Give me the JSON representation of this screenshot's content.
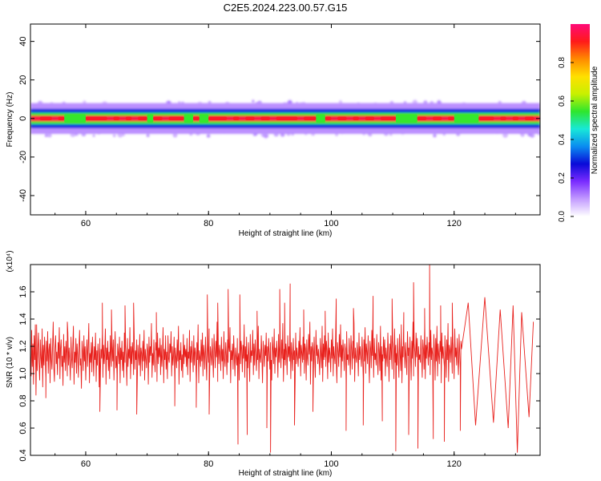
{
  "title": "C2E5.2024.223.00.57.G15",
  "colors": {
    "snr_line": "#e8201c",
    "colormap": [
      "#ffffff",
      "#c39bff",
      "#7a2cff",
      "#0a0ad8",
      "#0a8cf0",
      "#18e8d8",
      "#2ee62e",
      "#c8f000",
      "#ffe000",
      "#ff8a00",
      "#ff1a1a",
      "#ff0a78"
    ]
  },
  "colorbar": {
    "label": "Normalized spectral amplitude",
    "ticks": [
      "0.0",
      "0.2",
      "0.4",
      "0.6",
      "0.8"
    ]
  },
  "chart_data": [
    {
      "type": "heatmap",
      "xlabel": "Height of straight line (km)",
      "ylabel": "Frequency (Hz)",
      "xlim": [
        51,
        134
      ],
      "ylim": [
        -50,
        49
      ],
      "xticks": [
        "60",
        "80",
        "100",
        "120"
      ],
      "yticks": [
        "40",
        "20",
        "0",
        "-20",
        "-40"
      ],
      "colorbar_range": [
        0.0,
        1.0
      ],
      "band_center_hz": 0,
      "band_halfwidth_hz": [
        1.5,
        3,
        5,
        8
      ],
      "band_levels": [
        0.95,
        0.55,
        0.3,
        0.1
      ],
      "red_segments_km": [
        [
          52.5,
          54.5
        ],
        [
          55.5,
          56.5
        ],
        [
          60,
          63.5
        ],
        [
          64.5,
          65.5
        ],
        [
          66.5,
          67.5
        ],
        [
          68.5,
          70
        ],
        [
          71,
          72.5
        ],
        [
          73.5,
          76
        ],
        [
          77.5,
          78.5
        ],
        [
          80,
          83
        ],
        [
          84,
          85
        ],
        [
          86,
          87.5
        ],
        [
          88.5,
          90
        ],
        [
          91,
          94.5
        ],
        [
          95.5,
          97.5
        ],
        [
          99,
          100
        ],
        [
          101,
          102.5
        ],
        [
          103.5,
          104.5
        ],
        [
          105.5,
          107
        ],
        [
          108,
          110.5
        ],
        [
          114,
          115.5
        ],
        [
          116.5,
          118
        ],
        [
          119,
          120
        ],
        [
          124,
          126.5
        ],
        [
          127.5,
          128.5
        ],
        [
          129.5,
          130.5
        ],
        [
          131.5,
          133
        ]
      ],
      "green_segments_km": [
        [
          56.5,
          60
        ],
        [
          70,
          71
        ],
        [
          76,
          77.5
        ],
        [
          78.5,
          80
        ],
        [
          97.5,
          99
        ],
        [
          110.5,
          114
        ],
        [
          120,
          124
        ]
      ]
    },
    {
      "type": "line",
      "xlabel": "Height of straight line (km)",
      "ylabel": "SNR (10 * v/v)",
      "scale_label": "(x10⁴)",
      "xlim": [
        51,
        134
      ],
      "ylim": [
        0.4,
        1.8
      ],
      "xticks": [
        "60",
        "80",
        "100",
        "120"
      ],
      "yticks": [
        "0.4",
        "0.6",
        "0.8",
        "1.0",
        "1.2",
        "1.4",
        "1.6"
      ],
      "x_start": 51,
      "x_step": 0.1,
      "values": [
        1.15,
        0.98,
        1.32,
        1.05,
        1.22,
        0.92,
        1.28,
        1.1,
        1.36,
        0.84,
        1.2,
        1.02,
        1.18,
        1.3,
        1.08,
        0.95,
        1.25,
        1.12,
        1.04,
        1.33,
        0.9,
        1.21,
        1.06,
        1.27,
        1.14,
        0.97,
        1.24,
        1.09,
        1.31,
        1.0,
        1.17,
        1.22,
        0.93,
        1.26,
        1.1,
        1.03,
        1.2,
        1.38,
        1.05,
        0.94,
        1.19,
        1.28,
        1.07,
        1.16,
        0.99,
        1.23,
        1.11,
        1.34,
        0.96,
        1.18,
        1.25,
        1.05,
        1.13,
        0.91,
        1.29,
        1.08,
        1.2,
        1.02,
        1.24,
        1.15,
        0.98,
        1.3,
        1.06,
        1.19,
        1.1,
        0.95,
        1.27,
        1.12,
        1.04,
        1.21,
        1.35,
        0.92,
        1.16,
        1.08,
        1.26,
        1.0,
        1.22,
        1.14,
        0.97,
        1.18,
        1.32,
        1.06,
        1.11,
        0.89,
        1.24,
        1.17,
        1.02,
        1.28,
        1.09,
        1.2,
        0.95,
        1.13,
        1.25,
        1.05,
        1.19,
        1.37,
        0.93,
        1.15,
        1.08,
        1.23,
        1.01,
        1.27,
        1.12,
        0.98,
        1.2,
        1.1,
        1.3,
        0.94,
        1.17,
        1.06,
        1.22,
        1.14,
        0.9,
        1.26,
        1.03,
        1.18,
        1.11,
        1.29,
        0.97,
        1.21,
        1.07,
        1.15,
        1.33,
        0.92,
        1.19,
        1.1,
        1.24,
        1.02,
        1.16,
        0.96,
        1.28,
        1.12,
        1.05,
        1.2,
        1.09,
        1.25,
        0.95,
        1.18,
        1.31,
        1.04,
        1.13,
        0.99,
        1.22,
        1.15,
        1.07,
        1.27,
        0.93,
        1.19,
        1.1,
        1.24,
        1.02,
        1.16,
        0.97,
        1.3,
        1.08,
        1.21,
        1.13,
        0.91,
        1.26,
        1.05,
        1.18,
        1.11,
        1.34,
        0.96,
        1.2,
        1.07,
        1.23,
        1.14,
        0.99,
        1.28,
        1.03,
        1.17,
        1.1,
        1.25,
        0.94,
        1.21,
        1.12,
        1.06,
        1.29,
        0.98,
        1.19,
        1.15,
        1.02,
        1.24,
        1.09,
        1.32,
        0.95,
        1.18,
        1.11,
        1.04,
        1.22,
        1.16,
        0.92,
        1.27,
        1.08,
        1.2,
        1.13,
        1.37,
        0.97,
        1.15,
        1.06,
        1.25,
        1.1,
        1.01,
        1.23,
        1.17,
        0.94,
        1.3,
        1.07,
        1.19,
        1.12,
        1.26,
        0.99,
        1.21,
        1.05,
        1.14,
        1.34,
        0.93,
        1.18,
        1.1,
        1.24,
        1.03,
        1.16,
        0.96,
        1.28,
        1.11,
        1.08,
        1.22,
        1.15,
        1.31,
        0.98,
        1.2,
        1.06,
        1.13,
        1.27,
        0.95,
        1.19,
        1.12,
        1.04,
        1.25,
        1.09,
        1.35,
        0.92,
        1.17,
        1.1,
        1.23,
        1.02,
        1.14,
        0.97,
        1.29,
        1.07,
        1.21,
        1.12,
        1.18,
        1.05,
        1.26,
        0.99,
        1.16,
        1.11,
        1.32,
        0.94,
        1.2,
        1.08,
        1.24,
        1.13,
        1.01,
        1.28,
        1.06,
        1.19,
        1.15,
        0.96,
        1.23,
        1.1,
        1.36,
        0.93,
        1.17,
        1.12,
        1.05,
        1.25,
        1.09,
        1.3,
        0.98,
        1.21,
        1.14,
        1.03,
        1.27,
        1.11,
        0.95,
        1.22,
        1.18,
        1.08,
        1.33,
        1.0,
        1.2,
        1.13,
        1.06,
        1.26,
        1.1,
        0.97,
        1.29,
        1.16,
        1.04,
        1.24,
        1.12,
        1.38,
        0.94,
        1.19,
        1.07,
        1.21,
        1.15,
        1.02,
        1.27,
        1.09,
        1.18,
        0.96,
        1.31,
        1.11,
        1.05,
        1.23,
        1.14,
        0.99,
        1.25,
        1.08,
        1.2,
        1.16,
        1.34,
        0.93,
        1.17,
        1.1,
        1.22,
        1.03,
        1.28,
        1.13,
        0.98,
        1.19,
        1.12,
        1.06,
        1.26,
        1.1,
        1.15,
        0.95,
        1.3,
        1.07,
        1.24,
        1.18,
        1.01,
        1.21,
        1.11,
        1.36,
        0.97,
        1.2,
        1.09,
        1.27,
        1.14,
        1.04,
        1.23,
        1.12,
        0.94,
        1.29,
        1.08,
        1.17,
        1.13,
        1.32,
        0.99,
        1.22,
        1.06,
        1.25,
        1.15,
        1.02,
        1.19,
        1.1,
        1.35,
        0.96,
        1.18,
        1.12,
        1.08,
        1.28,
        1.11,
        0.93,
        1.24,
        1.16,
        1.05,
        1.21,
        1.13,
        1.3,
        0.98,
        1.2,
        1.09,
        1.26,
        1.14,
        1.03,
        1.23,
        1.1,
        0.95,
        1.27,
        1.17,
        1.07,
        1.33,
        1.0,
        1.19,
        1.12,
        1.24,
        1.15,
        0.97,
        1.29,
        1.08,
        1.21,
        1.13,
        1.04,
        1.25,
        1.11,
        1.37,
        0.94,
        1.18,
        1.1,
        1.06,
        1.22,
        1.16,
        0.99,
        1.28,
        1.12,
        1.2,
        1.09,
        1.31,
        0.96,
        1.23,
        1.14,
        1.02,
        1.26,
        1.1,
        1.17,
        0.93,
        1.3,
        1.07,
        1.19,
        1.13,
        1.05,
        1.24,
        1.11,
        1.34,
        0.98,
        1.21,
        1.15,
        1.08,
        1.27,
        1.1,
        1.0,
        1.22,
        1.18,
        0.95,
        1.25,
        1.12,
        1.06,
        1.29,
        1.14,
        1.38,
        0.92,
        1.2,
        1.09,
        1.23,
        1.16,
        1.03,
        1.27,
        1.1,
        0.97,
        1.32,
        1.13,
        1.21,
        1.07,
        1.18,
        1.11,
        0.99,
        1.26,
        1.15,
        1.04,
        1.35,
        0.94,
        1.22,
        1.1,
        1.28,
        1.12,
        1.05,
        1.24,
        1.17,
        0.96,
        1.3,
        1.08,
        1.19,
        1.14,
        1.01,
        1.25,
        1.11,
        1.33,
        0.98,
        1.2,
        1.13,
        1.07,
        1.27,
        1.1,
        0.93,
        1.23,
        1.16,
        1.05,
        1.29,
        1.12,
        1.36,
        0.97,
        1.21,
        1.09,
        1.25,
        1.15,
        1.02,
        1.22,
        1.18,
        0.95,
        1.31,
        1.1,
        1.14,
        1.06,
        1.26,
        1.12,
        0.99,
        1.28,
        1.17,
        1.03,
        1.24,
        1.11,
        1.37,
        0.94,
        1.19,
        1.13,
        1.08,
        1.23,
        1.15,
        0.98,
        1.3,
        1.1,
        1.2,
        1.12,
        1.05,
        1.27,
        1.14,
        0.96,
        1.25,
        1.09,
        1.34,
        1.0,
        1.22,
        1.16,
        1.07,
        1.28,
        1.11,
        0.93,
        1.24,
        1.18,
        1.04,
        1.32,
        1.13,
        1.21,
        0.97,
        1.26,
        1.1,
        1.15,
        1.06,
        1.29,
        1.12,
        0.99,
        1.23,
        1.17,
        1.02,
        1.35,
        0.95,
        1.2,
        1.14,
        1.09,
        1.27,
        1.11,
        1.25,
        0.98,
        1.19,
        1.13,
        1.05,
        1.3,
        1.16,
        0.94,
        1.22,
        1.1,
        1.28,
        1.12,
        1.03,
        1.24,
        1.18,
        0.96,
        1.33,
        1.08,
        1.21,
        1.15,
        1.06,
        1.26,
        1.11,
        0.97,
        1.29,
        1.14,
        1.02,
        1.36,
        0.93,
        1.2,
        1.12,
        1.25,
        1.17,
        1.04,
        1.23,
        1.1,
        0.99,
        1.31,
        1.13,
        1.19,
        1.07,
        1.27,
        1.15,
        0.95,
        1.24,
        1.11,
        1.38,
        0.98,
        1.22,
        1.16,
        1.05,
        1.3,
        1.12,
        1.26,
        0.94,
        1.2,
        1.1,
        1.14,
        1.08,
        1.28,
        1.13,
        0.97,
        1.25,
        1.18,
        1.03,
        1.34,
        0.96,
        1.21,
        1.11,
        1.27,
        1.15,
        1.06,
        1.23,
        1.12,
        0.99,
        1.32,
        1.1,
        1.19,
        1.14,
        1.04,
        1.29,
        1.17,
        0.95,
        1.26,
        1.09,
        1.35,
        0.98,
        1.22,
        1.13,
        1.07,
        1.24,
        1.16,
        0.93,
        1.3,
        1.11,
        1.2,
        1.12,
        1.05,
        1.28,
        1.15,
        0.97,
        1.25,
        1.1,
        1.37,
        0.94,
        1.21,
        1.17,
        1.08,
        1.27,
        1.13,
        1.0,
        1.23,
        1.14,
        0.96,
        1.33,
        1.12,
        1.19,
        1.06,
        1.26,
        1.11,
        0.99,
        1.29,
        1.16,
        1.03,
        1.24,
        1.18
      ],
      "spikes": [
        {
          "x": 52.0,
          "y": 1.36
        },
        {
          "x": 53.5,
          "y": 0.82
        },
        {
          "x": 57.0,
          "y": 1.38
        },
        {
          "x": 62.3,
          "y": 0.72
        },
        {
          "x": 62.7,
          "y": 1.52
        },
        {
          "x": 64.2,
          "y": 1.47
        },
        {
          "x": 65.1,
          "y": 0.73
        },
        {
          "x": 66.4,
          "y": 1.5
        },
        {
          "x": 67.8,
          "y": 1.52
        },
        {
          "x": 68.3,
          "y": 0.7
        },
        {
          "x": 71.5,
          "y": 1.45
        },
        {
          "x": 73.0,
          "y": 1.28
        },
        {
          "x": 74.5,
          "y": 0.76
        },
        {
          "x": 78.0,
          "y": 0.75
        },
        {
          "x": 79.8,
          "y": 1.58
        },
        {
          "x": 80.1,
          "y": 0.7
        },
        {
          "x": 81.5,
          "y": 1.52
        },
        {
          "x": 83.2,
          "y": 1.62
        },
        {
          "x": 84.8,
          "y": 0.48
        },
        {
          "x": 85.1,
          "y": 1.58
        },
        {
          "x": 86.3,
          "y": 0.55
        },
        {
          "x": 87.9,
          "y": 1.46
        },
        {
          "x": 89.5,
          "y": 0.6
        },
        {
          "x": 90.1,
          "y": 0.42
        },
        {
          "x": 91.6,
          "y": 1.62
        },
        {
          "x": 92.4,
          "y": 1.52
        },
        {
          "x": 93.3,
          "y": 1.66
        },
        {
          "x": 94.0,
          "y": 0.62
        },
        {
          "x": 95.5,
          "y": 1.47
        },
        {
          "x": 97.0,
          "y": 0.72
        },
        {
          "x": 99.0,
          "y": 1.46
        },
        {
          "x": 100.8,
          "y": 1.55
        },
        {
          "x": 102.4,
          "y": 0.58
        },
        {
          "x": 103.6,
          "y": 1.48
        },
        {
          "x": 105.2,
          "y": 0.62
        },
        {
          "x": 106.8,
          "y": 1.57
        },
        {
          "x": 108.3,
          "y": 0.65
        },
        {
          "x": 109.9,
          "y": 1.55
        },
        {
          "x": 110.5,
          "y": 0.43
        },
        {
          "x": 111.8,
          "y": 1.45
        },
        {
          "x": 112.6,
          "y": 0.55
        },
        {
          "x": 113.4,
          "y": 1.67
        },
        {
          "x": 114.1,
          "y": 0.45
        },
        {
          "x": 115.2,
          "y": 1.48
        },
        {
          "x": 116.0,
          "y": 1.8
        },
        {
          "x": 116.6,
          "y": 0.52
        },
        {
          "x": 117.8,
          "y": 1.5
        },
        {
          "x": 118.4,
          "y": 0.5
        },
        {
          "x": 119.7,
          "y": 1.52
        },
        {
          "x": 121.0,
          "y": 0.58
        },
        {
          "x": 122.3,
          "y": 1.52
        },
        {
          "x": 123.5,
          "y": 0.62
        },
        {
          "x": 125.0,
          "y": 1.56
        },
        {
          "x": 126.4,
          "y": 0.64
        },
        {
          "x": 127.5,
          "y": 1.47
        },
        {
          "x": 128.8,
          "y": 0.6
        },
        {
          "x": 129.6,
          "y": 1.5
        },
        {
          "x": 130.3,
          "y": 0.42
        },
        {
          "x": 131.0,
          "y": 1.45
        },
        {
          "x": 132.2,
          "y": 0.68
        },
        {
          "x": 132.9,
          "y": 1.38
        }
      ]
    }
  ]
}
